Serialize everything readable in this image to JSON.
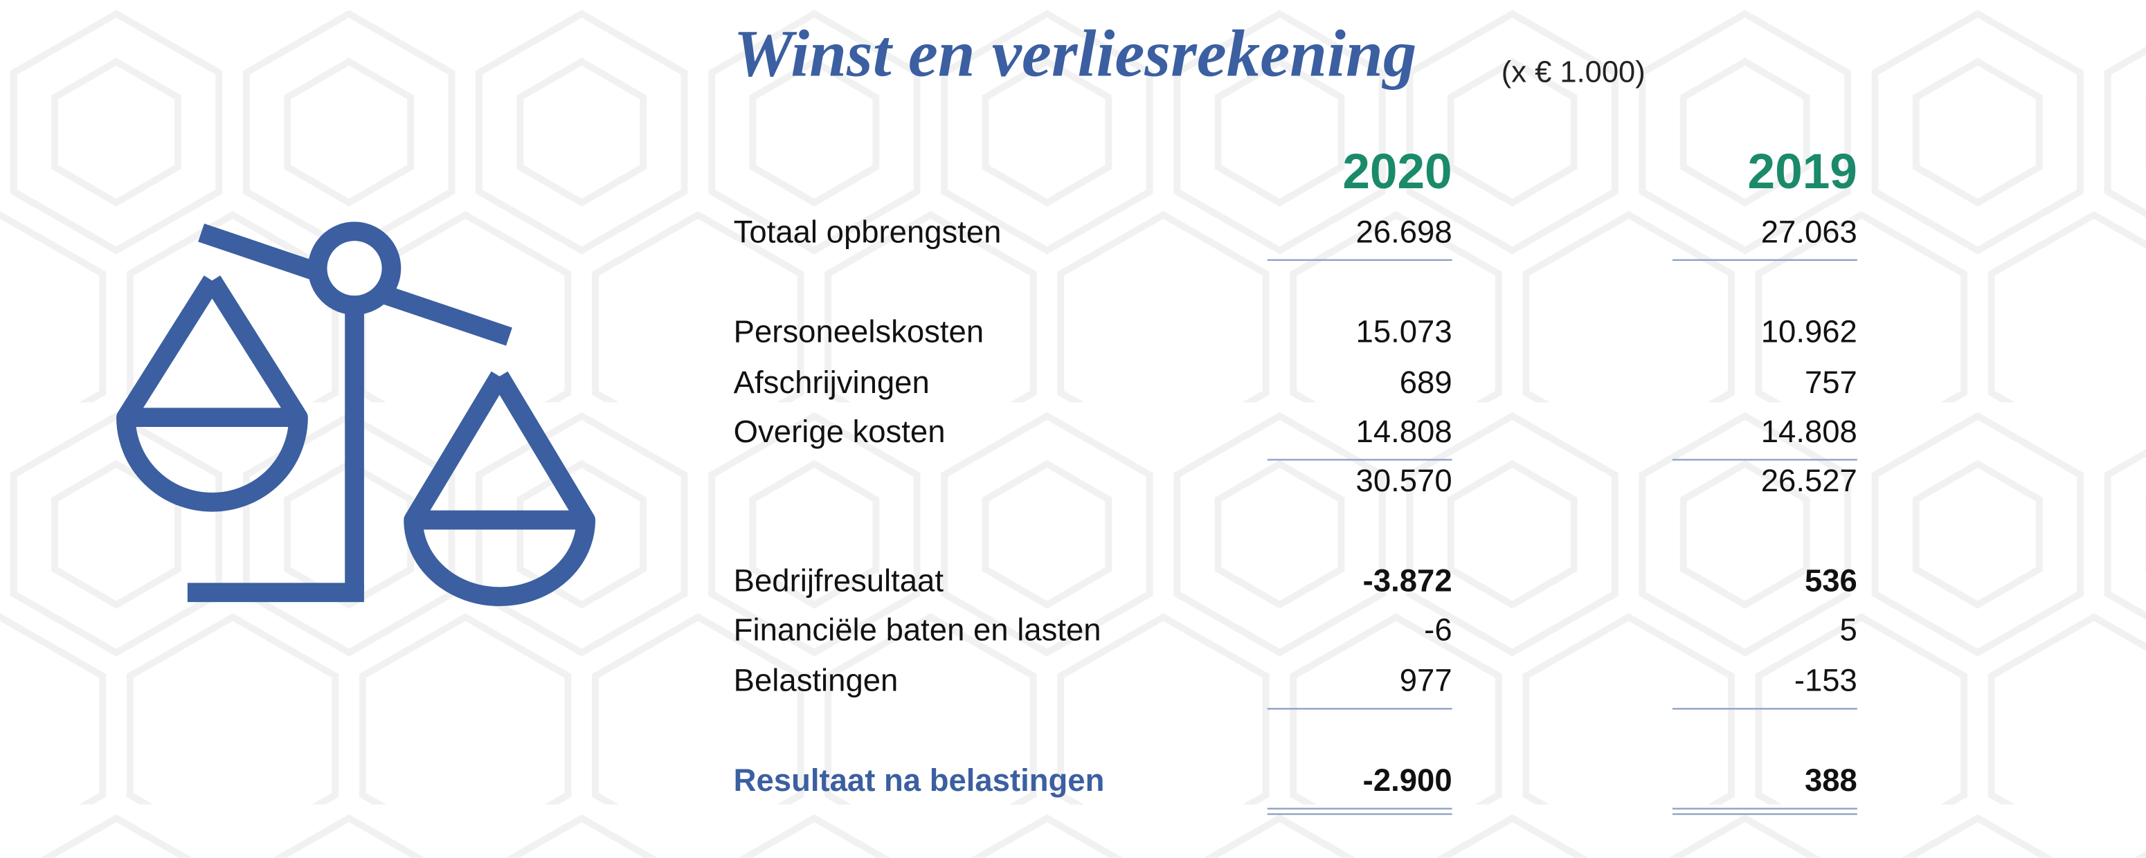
{
  "header": {
    "title": "Winst en verliesrekening",
    "unit": "(x € 1.000)"
  },
  "table": {
    "columns": [
      "2020",
      "2019"
    ],
    "rows": [
      {
        "label": "Totaal opbrengsten",
        "values": [
          "26.698",
          "27.063"
        ],
        "rule": "single"
      },
      {
        "label": "Personeelskosten",
        "values": [
          "15.073",
          "10.962"
        ]
      },
      {
        "label": "Afschrijvingen",
        "values": [
          "689",
          "757"
        ]
      },
      {
        "label": "Overige kosten",
        "values": [
          "14.808",
          "14.808"
        ],
        "rule": "single"
      },
      {
        "values": [
          "30.570",
          "26.527"
        ]
      },
      {
        "label": "Bedrijfresultaat",
        "values": [
          "-3.872",
          "536"
        ],
        "bold": true
      },
      {
        "label": "Financiële baten en lasten",
        "values": [
          "-6",
          "5"
        ]
      },
      {
        "label": "Belastingen",
        "values": [
          "977",
          "-153"
        ],
        "rule": "single"
      },
      {
        "label": "Resultaat na belastingen",
        "values": [
          "-2.900",
          "388"
        ],
        "bold": true,
        "highlight": true,
        "rule": "double"
      }
    ]
  }
}
